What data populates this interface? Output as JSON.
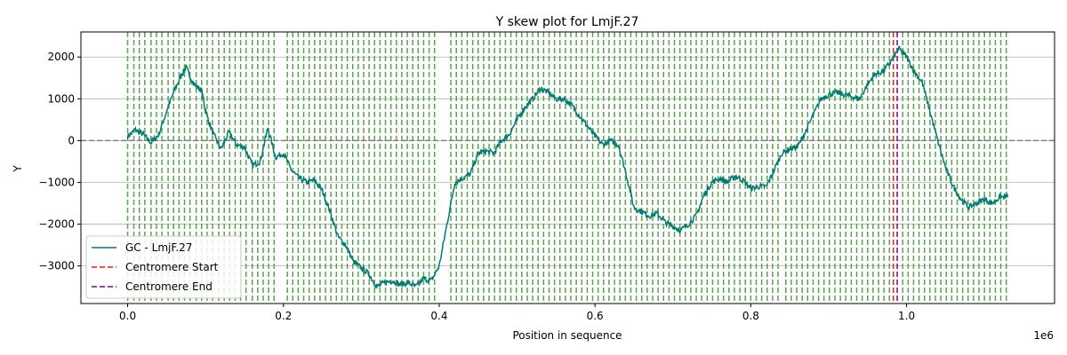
{
  "chart_data": {
    "type": "line",
    "title": "Y skew plot for LmjF.27",
    "xlabel": "Position in sequence",
    "ylabel": "Y",
    "x_offset_label": "1e6",
    "xlim": [
      -60000,
      1190000
    ],
    "ylim": [
      -3900,
      2600
    ],
    "x_ticks": [
      0,
      200000,
      400000,
      600000,
      800000,
      1000000
    ],
    "x_tick_labels": [
      "0.0",
      "0.2",
      "0.4",
      "0.6",
      "0.8",
      "1.0"
    ],
    "y_ticks": [
      -3000,
      -2000,
      -1000,
      0,
      1000,
      2000
    ],
    "y_tick_labels": [
      "−3000",
      "−2000",
      "−1000",
      "0",
      "1000",
      "2000"
    ],
    "grid": "y-major",
    "legend_position": "lower-left",
    "series": [
      {
        "name": "GC - LmjF.27",
        "color": "#007a73",
        "points": [
          [
            0,
            100
          ],
          [
            10000,
            250
          ],
          [
            20000,
            150
          ],
          [
            30000,
            -50
          ],
          [
            40000,
            150
          ],
          [
            50000,
            700
          ],
          [
            60000,
            1200
          ],
          [
            70000,
            1600
          ],
          [
            75000,
            1750
          ],
          [
            85000,
            1350
          ],
          [
            95000,
            1200
          ],
          [
            100000,
            700
          ],
          [
            110000,
            150
          ],
          [
            120000,
            -200
          ],
          [
            130000,
            200
          ],
          [
            140000,
            -100
          ],
          [
            150000,
            -150
          ],
          [
            160000,
            -600
          ],
          [
            170000,
            -500
          ],
          [
            180000,
            300
          ],
          [
            190000,
            -400
          ],
          [
            200000,
            -300
          ],
          [
            210000,
            -700
          ],
          [
            220000,
            -900
          ],
          [
            230000,
            -1000
          ],
          [
            240000,
            -950
          ],
          [
            250000,
            -1200
          ],
          [
            260000,
            -1700
          ],
          [
            270000,
            -2300
          ],
          [
            280000,
            -2500
          ],
          [
            290000,
            -2900
          ],
          [
            300000,
            -3050
          ],
          [
            310000,
            -3200
          ],
          [
            320000,
            -3500
          ],
          [
            330000,
            -3400
          ],
          [
            340000,
            -3350
          ],
          [
            350000,
            -3450
          ],
          [
            360000,
            -3400
          ],
          [
            370000,
            -3500
          ],
          [
            380000,
            -3300
          ],
          [
            390000,
            -3350
          ],
          [
            400000,
            -3000
          ],
          [
            410000,
            -2000
          ],
          [
            420000,
            -1000
          ],
          [
            430000,
            -900
          ],
          [
            440000,
            -800
          ],
          [
            450000,
            -300
          ],
          [
            460000,
            -250
          ],
          [
            470000,
            -300
          ],
          [
            480000,
            0
          ],
          [
            490000,
            150
          ],
          [
            500000,
            500
          ],
          [
            510000,
            800
          ],
          [
            520000,
            1000
          ],
          [
            530000,
            1250
          ],
          [
            540000,
            1150
          ],
          [
            550000,
            1000
          ],
          [
            560000,
            1000
          ],
          [
            570000,
            850
          ],
          [
            580000,
            600
          ],
          [
            590000,
            350
          ],
          [
            600000,
            100
          ],
          [
            610000,
            -100
          ],
          [
            620000,
            0
          ],
          [
            630000,
            -100
          ],
          [
            640000,
            -800
          ],
          [
            650000,
            -1600
          ],
          [
            660000,
            -1700
          ],
          [
            670000,
            -1800
          ],
          [
            680000,
            -1750
          ],
          [
            690000,
            -1950
          ],
          [
            700000,
            -2050
          ],
          [
            710000,
            -2150
          ],
          [
            720000,
            -2000
          ],
          [
            730000,
            -1800
          ],
          [
            740000,
            -1300
          ],
          [
            750000,
            -1000
          ],
          [
            760000,
            -900
          ],
          [
            770000,
            -1000
          ],
          [
            780000,
            -850
          ],
          [
            790000,
            -950
          ],
          [
            800000,
            -1150
          ],
          [
            810000,
            -1100
          ],
          [
            820000,
            -1100
          ],
          [
            830000,
            -700
          ],
          [
            840000,
            -300
          ],
          [
            850000,
            -200
          ],
          [
            860000,
            -150
          ],
          [
            870000,
            200
          ],
          [
            880000,
            600
          ],
          [
            890000,
            1000
          ],
          [
            900000,
            1100
          ],
          [
            910000,
            1150
          ],
          [
            920000,
            1100
          ],
          [
            930000,
            1050
          ],
          [
            940000,
            1000
          ],
          [
            950000,
            1350
          ],
          [
            960000,
            1600
          ],
          [
            970000,
            1650
          ],
          [
            980000,
            1900
          ],
          [
            990000,
            2200
          ],
          [
            1000000,
            2000
          ],
          [
            1010000,
            1650
          ],
          [
            1020000,
            1400
          ],
          [
            1030000,
            700
          ],
          [
            1040000,
            0
          ],
          [
            1050000,
            -650
          ],
          [
            1060000,
            -1100
          ],
          [
            1070000,
            -1400
          ],
          [
            1080000,
            -1600
          ],
          [
            1090000,
            -1500
          ],
          [
            1100000,
            -1400
          ],
          [
            1110000,
            -1500
          ],
          [
            1120000,
            -1350
          ],
          [
            1130000,
            -1350
          ]
        ]
      }
    ],
    "vertical_lines": {
      "name": "",
      "color": "#4a9a3d",
      "style": "dashed",
      "x": [
        0,
        8000,
        15000,
        22000,
        30000,
        37000,
        44000,
        52000,
        59000,
        66000,
        73000,
        80000,
        88000,
        95000,
        102000,
        109000,
        117000,
        124000,
        131000,
        138000,
        145000,
        152000,
        160000,
        167000,
        174000,
        181000,
        188000,
        205000,
        212000,
        219000,
        226000,
        233000,
        240000,
        247000,
        254000,
        261000,
        268000,
        275000,
        282000,
        289000,
        296000,
        303000,
        310000,
        317000,
        324000,
        331000,
        338000,
        345000,
        352000,
        359000,
        366000,
        373000,
        380000,
        387000,
        394000,
        415000,
        422000,
        429000,
        436000,
        443000,
        450000,
        457000,
        464000,
        471000,
        478000,
        485000,
        492000,
        499000,
        506000,
        513000,
        520000,
        527000,
        534000,
        541000,
        548000,
        555000,
        562000,
        569000,
        576000,
        583000,
        590000,
        597000,
        604000,
        611000,
        618000,
        625000,
        632000,
        639000,
        646000,
        653000,
        660000,
        667000,
        674000,
        681000,
        688000,
        695000,
        702000,
        709000,
        716000,
        723000,
        730000,
        737000,
        744000,
        751000,
        758000,
        765000,
        772000,
        779000,
        786000,
        793000,
        800000,
        807000,
        814000,
        821000,
        828000,
        835000,
        845000,
        852000,
        859000,
        866000,
        873000,
        880000,
        887000,
        894000,
        901000,
        908000,
        915000,
        922000,
        929000,
        936000,
        943000,
        950000,
        957000,
        964000,
        971000,
        978000,
        995000,
        1002000,
        1009000,
        1016000,
        1023000,
        1030000,
        1037000,
        1044000,
        1051000,
        1058000,
        1065000,
        1072000,
        1079000,
        1086000,
        1093000,
        1100000,
        1107000,
        1114000,
        1121000,
        1128000
      ]
    },
    "centromere_start": {
      "name": "Centromere Start",
      "x": 983000,
      "color": "#e02020"
    },
    "centromere_end": {
      "name": "Centromere End",
      "x": 988000,
      "color": "#800080"
    },
    "zero_line": {
      "y": 0,
      "color": "#808080",
      "style": "dashed"
    }
  }
}
